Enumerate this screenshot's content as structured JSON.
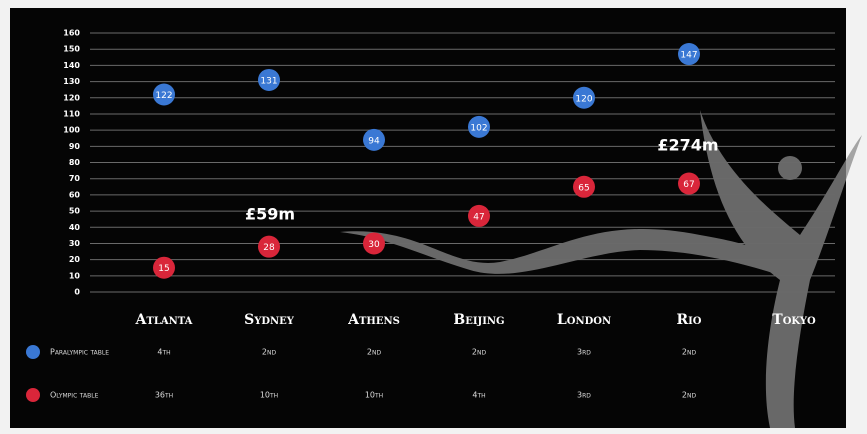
{
  "chart_data": {
    "type": "scatter",
    "categories": [
      "Atlanta",
      "Sydney",
      "Athens",
      "Beijing",
      "London",
      "Rio",
      "Tokyo"
    ],
    "series": [
      {
        "name": "Paralympic table",
        "color": "#3a78d4",
        "values": [
          122,
          131,
          94,
          102,
          120,
          147,
          null
        ],
        "ranks": [
          "4th",
          "2nd",
          "2nd",
          "2nd",
          "3rd",
          "2nd",
          null
        ]
      },
      {
        "name": "Olympic table",
        "color": "#d9263a",
        "values": [
          15,
          28,
          30,
          47,
          65,
          67,
          null
        ],
        "ranks": [
          "36th",
          "10th",
          "10th",
          "4th",
          "3rd",
          "2nd",
          null
        ]
      }
    ],
    "annotations": [
      "£59m",
      "£274m"
    ],
    "ylim": [
      0,
      160
    ],
    "yticks": [
      0,
      10,
      20,
      30,
      40,
      50,
      60,
      70,
      80,
      90,
      100,
      110,
      120,
      130,
      140,
      150,
      160
    ],
    "grid": true
  }
}
